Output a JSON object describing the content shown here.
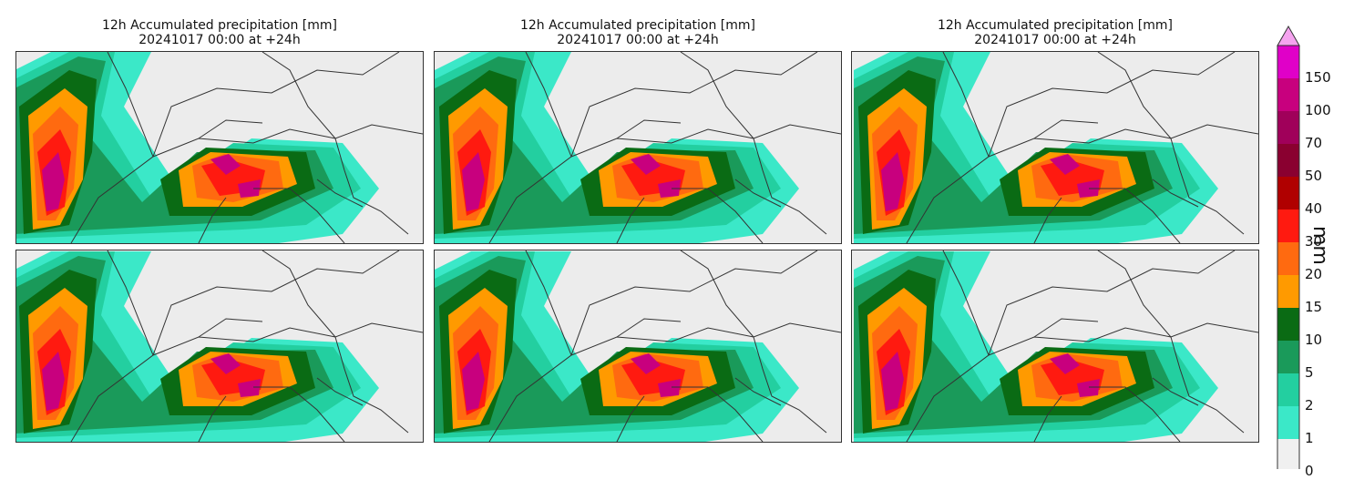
{
  "panels": [
    {
      "title_line1": "12h Accumulated precipitation [mm]",
      "title_line2": "20241017 00:00 at +24h"
    },
    {
      "title_line1": "12h Accumulated precipitation [mm]",
      "title_line2": "20241017 00:00 at +24h"
    },
    {
      "title_line1": "12h Accumulated precipitation [mm]",
      "title_line2": "20241017 00:00 at +24h"
    },
    {
      "title_line1": "",
      "title_line2": ""
    },
    {
      "title_line1": "",
      "title_line2": ""
    },
    {
      "title_line1": "",
      "title_line2": ""
    }
  ],
  "colorbar": {
    "label": "mm",
    "levels": [
      "0",
      "1",
      "2",
      "5",
      "10",
      "15",
      "20",
      "30",
      "40",
      "50",
      "70",
      "100",
      "150"
    ],
    "colors": [
      "#f0f0f0",
      "#3be8c8",
      "#23cfa0",
      "#1a9a5a",
      "#0a6b14",
      "#ff9a00",
      "#ff6a10",
      "#ff1a10",
      "#b00000",
      "#8a0030",
      "#a0005a",
      "#c8007e",
      "#e000c8"
    ],
    "extend_color": "#f5a3ef"
  }
}
